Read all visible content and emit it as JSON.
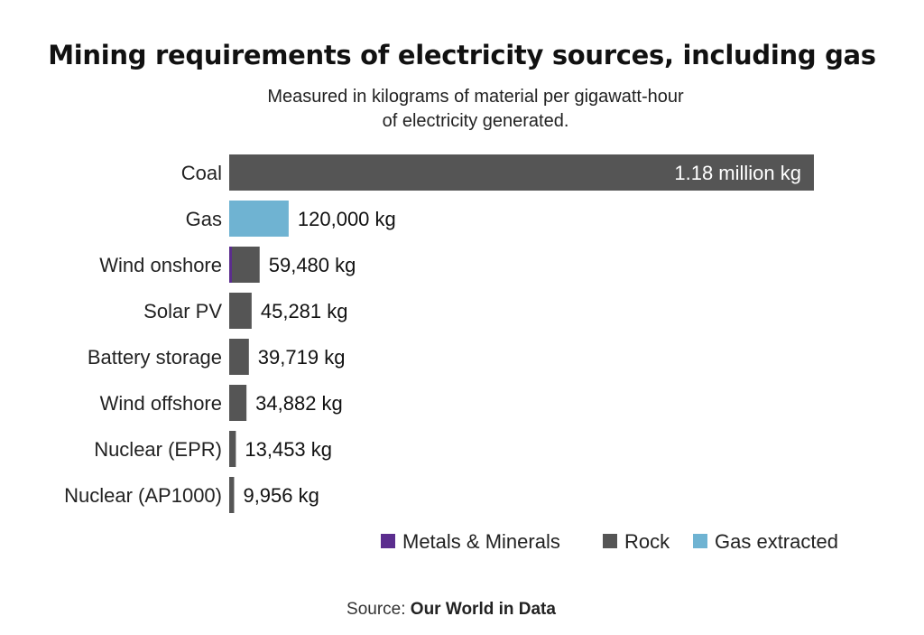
{
  "chart_data": {
    "type": "bar",
    "orientation": "horizontal",
    "stacked": true,
    "title": "Mining requirements of electricity sources, including gas",
    "subtitle_line1": "Measured in kilograms of material per gigawatt-hour",
    "subtitle_line2": "of electricity generated.",
    "categories": [
      "Coal",
      "Gas",
      "Wind onshore",
      "Solar PV",
      "Battery storage",
      "Wind offshore",
      "Nuclear (EPR)",
      "Nuclear (AP1000)"
    ],
    "value_labels": [
      "1.18 million kg",
      "120,000 kg",
      "59,480 kg",
      "45,281 kg",
      "39,719 kg",
      "34,882 kg",
      "13,453 kg",
      "9,956 kg"
    ],
    "totals": [
      1180000,
      120000,
      59480,
      45281,
      39719,
      34882,
      13453,
      9956
    ],
    "series": [
      {
        "name": "Metals & Minerals",
        "color": "#5b2d8e",
        "values": [
          0,
          0,
          3500,
          0,
          0,
          0,
          0,
          0
        ]
      },
      {
        "name": "Rock",
        "color": "#555555",
        "values": [
          1180000,
          0,
          55980,
          45281,
          39719,
          34882,
          13453,
          9956
        ]
      },
      {
        "name": "Gas extracted",
        "color": "#6fb3d2",
        "values": [
          0,
          120000,
          0,
          0,
          0,
          0,
          0,
          0
        ]
      }
    ],
    "xlim": [
      0,
      1180000
    ],
    "legend_position": "bottom-right",
    "grid": false
  },
  "source": {
    "prefix": "Source: ",
    "name": "Our World in Data"
  }
}
